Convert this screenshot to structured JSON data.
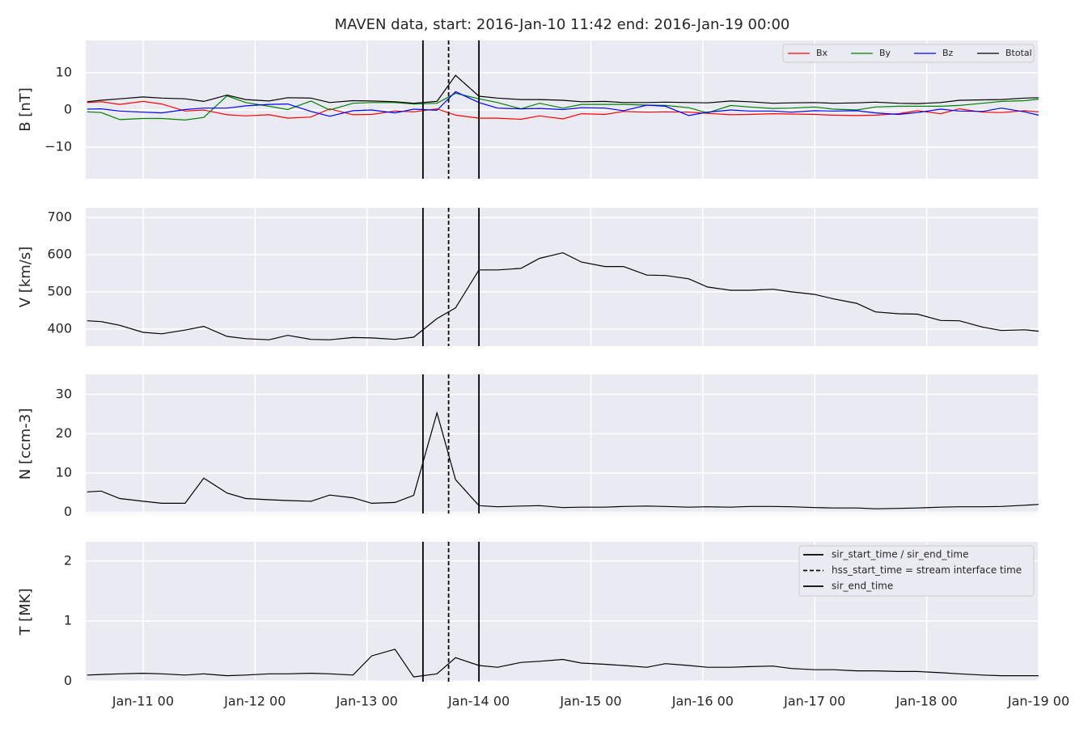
{
  "chart_data": [
    {
      "type": "line",
      "title": "MAVEN data, start: 2016-Jan-10 11:42  end: 2016-Jan-19 00:00",
      "ylabel": "B [nT]",
      "x": [
        "Jan-10 12",
        "Jan-10 15",
        "Jan-10 19",
        "Jan-11 00",
        "Jan-11 04",
        "Jan-11 09",
        "Jan-11 13",
        "Jan-11 18",
        "Jan-11 22",
        "Jan-12 03",
        "Jan-12 07",
        "Jan-12 12",
        "Jan-12 16",
        "Jan-12 21",
        "Jan-13 01",
        "Jan-13 06",
        "Jan-13 10",
        "Jan-13 15",
        "Jan-13 19",
        "Jan-14 00",
        "Jan-14 04",
        "Jan-14 09",
        "Jan-14 13",
        "Jan-14 18",
        "Jan-14 22",
        "Jan-15 03",
        "Jan-15 07",
        "Jan-15 12",
        "Jan-15 16",
        "Jan-15 21",
        "Jan-16 01",
        "Jan-16 06",
        "Jan-16 10",
        "Jan-16 15",
        "Jan-16 19",
        "Jan-17 00",
        "Jan-17 04",
        "Jan-17 09",
        "Jan-17 13",
        "Jan-17 18",
        "Jan-17 22",
        "Jan-18 03",
        "Jan-18 07",
        "Jan-18 12",
        "Jan-18 16",
        "Jan-18 21",
        "Jan-19 00"
      ],
      "series": [
        {
          "name": "Bx",
          "color": "#ff0000",
          "values": [
            2.0,
            2.2,
            1.5,
            2.3,
            1.6,
            -0.3,
            0.0,
            -1.3,
            -1.6,
            -1.3,
            -2.2,
            -1.9,
            0.3,
            -1.3,
            -1.2,
            -0.3,
            -0.5,
            0.3,
            -1.4,
            -2.2,
            -2.2,
            -2.5,
            -1.6,
            -2.4,
            -1.0,
            -1.2,
            -0.4,
            -0.6,
            -0.5,
            -0.6,
            -0.9,
            -1.3,
            -1.2,
            -1.0,
            -1.1,
            -1.2,
            -1.4,
            -1.5,
            -1.4,
            -1.0,
            -0.2,
            -1.0,
            0.3,
            -0.6,
            -0.7,
            -0.2,
            -0.5
          ]
        },
        {
          "name": "By",
          "color": "#008000",
          "values": [
            -0.5,
            -0.7,
            -2.6,
            -2.3,
            -2.3,
            -2.7,
            -2.0,
            3.8,
            2.0,
            1.0,
            0.1,
            2.4,
            0.0,
            1.8,
            2.0,
            2.0,
            1.6,
            1.8,
            4.5,
            3.0,
            2.0,
            0.3,
            1.8,
            0.5,
            1.5,
            1.5,
            1.5,
            1.3,
            1.2,
            0.6,
            -0.8,
            1.2,
            0.8,
            0.4,
            0.5,
            0.8,
            0.2,
            0.0,
            0.8,
            1.0,
            1.0,
            1.0,
            1.2,
            1.8,
            2.3,
            2.5,
            2.9
          ]
        },
        {
          "name": "Bz",
          "color": "#0000ff",
          "values": [
            0.2,
            0.3,
            -0.3,
            -0.6,
            -0.8,
            0.1,
            0.5,
            0.5,
            1.1,
            1.5,
            1.6,
            -0.4,
            -1.7,
            -0.2,
            0.0,
            -0.8,
            0.2,
            -0.1,
            4.9,
            2.0,
            0.5,
            0.3,
            0.4,
            0.1,
            0.6,
            0.5,
            -0.2,
            1.3,
            1.0,
            -1.5,
            -0.6,
            0.0,
            -0.3,
            -0.3,
            -0.6,
            -0.2,
            -0.3,
            -0.2,
            -0.8,
            -1.2,
            -0.7,
            0.2,
            -0.3,
            -0.4,
            0.5,
            -0.5,
            -1.4
          ]
        },
        {
          "name": "Btotal",
          "color": "#000000",
          "values": [
            2.2,
            2.6,
            3.0,
            3.5,
            3.2,
            3.0,
            2.3,
            4.0,
            2.8,
            2.4,
            3.3,
            3.2,
            2.0,
            2.5,
            2.4,
            2.2,
            1.8,
            2.3,
            9.3,
            3.7,
            3.2,
            2.8,
            2.8,
            2.6,
            2.2,
            2.3,
            2.0,
            2.0,
            2.1,
            2.0,
            1.9,
            2.4,
            2.2,
            1.8,
            1.9,
            2.0,
            1.8,
            1.9,
            2.1,
            1.8,
            1.7,
            2.0,
            2.6,
            2.7,
            2.8,
            3.2,
            3.3
          ]
        }
      ],
      "ylim": [
        -18.5,
        18.7
      ],
      "yticks": [
        {
          "value": -10,
          "label": "−10"
        },
        0,
        10
      ],
      "grid": true,
      "legend": "upper right"
    },
    {
      "type": "line",
      "ylabel": "V [km/s]",
      "x": [
        "Jan-10 12",
        "Jan-10 15",
        "Jan-10 19",
        "Jan-11 00",
        "Jan-11 04",
        "Jan-11 09",
        "Jan-11 13",
        "Jan-11 18",
        "Jan-11 22",
        "Jan-12 03",
        "Jan-12 07",
        "Jan-12 12",
        "Jan-12 16",
        "Jan-12 21",
        "Jan-13 01",
        "Jan-13 06",
        "Jan-13 10",
        "Jan-13 15",
        "Jan-13 19",
        "Jan-14 00",
        "Jan-14 04",
        "Jan-14 09",
        "Jan-14 13",
        "Jan-14 18",
        "Jan-14 22",
        "Jan-15 03",
        "Jan-15 07",
        "Jan-15 12",
        "Jan-15 16",
        "Jan-15 21",
        "Jan-16 01",
        "Jan-16 06",
        "Jan-16 10",
        "Jan-16 15",
        "Jan-16 19",
        "Jan-17 00",
        "Jan-17 04",
        "Jan-17 09",
        "Jan-17 13",
        "Jan-17 18",
        "Jan-17 22",
        "Jan-18 03",
        "Jan-18 07",
        "Jan-18 12",
        "Jan-18 16",
        "Jan-18 21",
        "Jan-19 00"
      ],
      "series": [
        {
          "color": "#000000",
          "values": [
            422,
            420,
            410,
            391,
            387,
            397,
            407,
            380,
            374,
            371,
            383,
            372,
            371,
            377,
            376,
            372,
            378,
            428,
            457,
            559,
            559,
            563,
            590,
            605,
            580,
            568,
            568,
            545,
            544,
            535,
            513,
            504,
            504,
            507,
            500,
            493,
            481,
            469,
            446,
            441,
            440,
            423,
            422,
            405,
            396,
            398,
            394
          ]
        }
      ],
      "ylim": [
        354,
        726
      ],
      "yticks": [
        400,
        500,
        600,
        700
      ],
      "grid": true
    },
    {
      "type": "line",
      "ylabel": "N [ccm-3]",
      "x": [
        "Jan-10 12",
        "Jan-10 15",
        "Jan-10 19",
        "Jan-11 00",
        "Jan-11 04",
        "Jan-11 09",
        "Jan-11 13",
        "Jan-11 18",
        "Jan-11 22",
        "Jan-12 03",
        "Jan-12 07",
        "Jan-12 12",
        "Jan-12 16",
        "Jan-12 21",
        "Jan-13 01",
        "Jan-13 06",
        "Jan-13 10",
        "Jan-13 15",
        "Jan-13 19",
        "Jan-14 00",
        "Jan-14 04",
        "Jan-14 09",
        "Jan-14 13",
        "Jan-14 18",
        "Jan-14 22",
        "Jan-15 03",
        "Jan-15 07",
        "Jan-15 12",
        "Jan-15 16",
        "Jan-15 21",
        "Jan-16 01",
        "Jan-16 06",
        "Jan-16 10",
        "Jan-16 15",
        "Jan-16 19",
        "Jan-17 00",
        "Jan-17 04",
        "Jan-17 09",
        "Jan-17 13",
        "Jan-17 18",
        "Jan-17 22",
        "Jan-18 03",
        "Jan-18 07",
        "Jan-18 12",
        "Jan-18 16",
        "Jan-18 21",
        "Jan-19 00"
      ],
      "series": [
        {
          "color": "#000000",
          "values": [
            5.2,
            5.4,
            3.5,
            2.8,
            2.3,
            2.3,
            8.7,
            4.9,
            3.5,
            3.2,
            3.0,
            2.8,
            4.4,
            3.7,
            2.3,
            2.5,
            4.3,
            25.3,
            8.3,
            1.7,
            1.4,
            1.6,
            1.7,
            1.2,
            1.3,
            1.3,
            1.5,
            1.6,
            1.5,
            1.3,
            1.4,
            1.3,
            1.5,
            1.5,
            1.4,
            1.2,
            1.1,
            1.1,
            0.9,
            1.0,
            1.1,
            1.3,
            1.4,
            1.4,
            1.5,
            1.8,
            2.0
          ]
        }
      ],
      "ylim": [
        -0.3,
        35.1
      ],
      "yticks": [
        0,
        10,
        20,
        30
      ],
      "grid": true
    },
    {
      "type": "line",
      "ylabel": "T [MK]",
      "x": [
        "Jan-10 12",
        "Jan-10 15",
        "Jan-10 19",
        "Jan-11 00",
        "Jan-11 04",
        "Jan-11 09",
        "Jan-11 13",
        "Jan-11 18",
        "Jan-11 22",
        "Jan-12 03",
        "Jan-12 07",
        "Jan-12 12",
        "Jan-12 16",
        "Jan-12 21",
        "Jan-13 01",
        "Jan-13 06",
        "Jan-13 10",
        "Jan-13 15",
        "Jan-13 19",
        "Jan-14 00",
        "Jan-14 04",
        "Jan-14 09",
        "Jan-14 13",
        "Jan-14 18",
        "Jan-14 22",
        "Jan-15 03",
        "Jan-15 07",
        "Jan-15 12",
        "Jan-15 16",
        "Jan-15 21",
        "Jan-16 01",
        "Jan-16 06",
        "Jan-16 10",
        "Jan-16 15",
        "Jan-16 19",
        "Jan-17 00",
        "Jan-17 04",
        "Jan-17 09",
        "Jan-17 13",
        "Jan-17 18",
        "Jan-17 22",
        "Jan-18 03",
        "Jan-18 07",
        "Jan-18 12",
        "Jan-18 16",
        "Jan-18 21",
        "Jan-19 00"
      ],
      "series": [
        {
          "color": "#000000",
          "values": [
            0.1,
            0.11,
            0.12,
            0.13,
            0.12,
            0.1,
            0.12,
            0.09,
            0.1,
            0.12,
            0.12,
            0.13,
            0.12,
            0.1,
            0.42,
            0.53,
            0.07,
            0.12,
            0.39,
            0.26,
            0.23,
            0.31,
            0.33,
            0.36,
            0.3,
            0.28,
            0.26,
            0.23,
            0.29,
            0.26,
            0.23,
            0.23,
            0.24,
            0.25,
            0.21,
            0.19,
            0.19,
            0.17,
            0.17,
            0.16,
            0.16,
            0.14,
            0.12,
            0.1,
            0.09,
            0.09,
            0.09
          ]
        }
      ],
      "ylim": [
        -0.01,
        2.32
      ],
      "yticks": [
        0,
        1,
        2
      ],
      "grid": true,
      "legend": "upper right",
      "xlim": [
        "Jan-10 11:42",
        "Jan-19 00"
      ],
      "xticks": [
        "Jan-11 00",
        "Jan-12 00",
        "Jan-13 00",
        "Jan-14 00",
        "Jan-15 00",
        "Jan-16 00",
        "Jan-17 00",
        "Jan-18 00",
        "Jan-19 00"
      ],
      "vlines": [
        {
          "name": "sir_start_time / sir_end_time",
          "x": "Jan-13 12",
          "style": "solid",
          "color": "#000000"
        },
        {
          "name": "hss_start_time = stream interface time",
          "x": "Jan-13 17:30",
          "style": "dashed",
          "color": "#000000"
        },
        {
          "name": "sir_end_time",
          "x": "Jan-14 00",
          "style": "solid",
          "color": "#000000"
        }
      ]
    }
  ]
}
